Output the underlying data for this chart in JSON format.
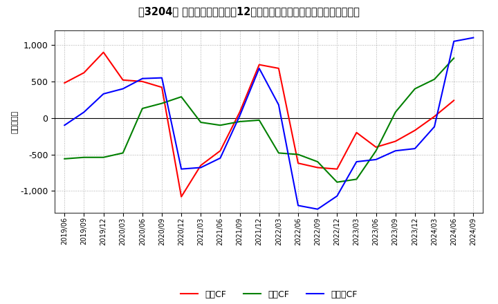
{
  "title": "［3204］ キャッシュフローの12か月移動合計の対前年同期増減額の推移",
  "ylabel": "（百万円）",
  "dates": [
    "2019/06",
    "2019/09",
    "2019/12",
    "2020/03",
    "2020/06",
    "2020/09",
    "2020/12",
    "2021/03",
    "2021/06",
    "2021/09",
    "2021/12",
    "2022/03",
    "2022/06",
    "2022/09",
    "2022/12",
    "2023/03",
    "2023/06",
    "2023/09",
    "2023/12",
    "2024/03",
    "2024/06",
    "2024/09"
  ],
  "営業CF": [
    480,
    620,
    900,
    520,
    500,
    420,
    -1080,
    -650,
    -450,
    80,
    730,
    680,
    -620,
    -680,
    -700,
    -200,
    -400,
    -320,
    -170,
    20,
    240,
    null
  ],
  "投資CF": [
    -560,
    -540,
    -540,
    -480,
    130,
    200,
    290,
    -60,
    -100,
    -50,
    -30,
    -480,
    -500,
    -600,
    -880,
    -840,
    -450,
    80,
    400,
    530,
    820,
    null
  ],
  "フリーCF": [
    -100,
    80,
    330,
    400,
    540,
    550,
    -700,
    -680,
    -550,
    30,
    680,
    180,
    -1200,
    -1250,
    -1070,
    -600,
    -570,
    -450,
    -420,
    -120,
    1050,
    1100
  ],
  "line_colors": {
    "営業CF": "#ff0000",
    "投資CF": "#008000",
    "フリーCF": "#0000ff"
  },
  "ylim": [
    -1300,
    1200
  ],
  "yticks": [
    -1000,
    -500,
    0,
    500,
    1000
  ],
  "background_color": "#ffffff",
  "grid_color": "#aaaaaa",
  "title_fontsize": 10.5,
  "legend_labels": [
    "営業CF",
    "投資CF",
    "フリーCF"
  ]
}
